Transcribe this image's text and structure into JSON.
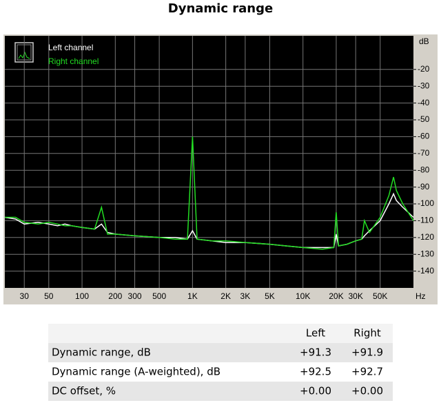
{
  "chart_data": {
    "type": "line",
    "title": "Dynamic range",
    "x_unit": "Hz",
    "y_unit": "dB",
    "x_scale": "log",
    "grid": true,
    "legend": "upper left",
    "background": "#000000",
    "x": [
      20,
      25,
      30,
      40,
      50,
      60,
      70,
      80,
      100,
      130,
      150,
      170,
      200,
      300,
      500,
      700,
      900,
      1000,
      1100,
      1500,
      2000,
      3000,
      5000,
      7000,
      10000,
      15000,
      19000,
      20000,
      21000,
      25000,
      30000,
      34000,
      36000,
      40000,
      50000,
      60000,
      66000,
      70000,
      80000,
      100000
    ],
    "series": [
      {
        "name": "Left channel",
        "color": "#ffffff",
        "values": [
          -108,
          -109,
          -112,
          -111,
          -112,
          -113,
          -112,
          -113,
          -114,
          -115,
          -112,
          -117,
          -118,
          -119,
          -120,
          -120,
          -121,
          -116,
          -121,
          -122,
          -123,
          -123,
          -124,
          -125,
          -126,
          -126,
          -126,
          -118,
          -125,
          -124,
          -122,
          -121,
          -119,
          -116,
          -110,
          -100,
          -94,
          -98,
          -102,
          -108
        ]
      },
      {
        "name": "Right channel",
        "color": "#22dd22",
        "values": [
          -108,
          -108,
          -111,
          -112,
          -111,
          -112,
          -113,
          -113,
          -114,
          -115,
          -102,
          -118,
          -118,
          -119,
          -120,
          -121,
          -121,
          -60,
          -121,
          -122,
          -122,
          -123,
          -124,
          -125,
          -126,
          -127,
          -126,
          -105,
          -125,
          -124,
          -122,
          -121,
          -110,
          -117,
          -108,
          -95,
          -84,
          -92,
          -100,
          -110
        ]
      }
    ],
    "xlim": [
      20,
      100000
    ],
    "ylim": [
      -150,
      0
    ],
    "xticks": [
      30,
      50,
      100,
      200,
      300,
      500,
      {
        "value": 1000,
        "label": "1K"
      },
      {
        "value": 2000,
        "label": "2K"
      },
      {
        "value": 3000,
        "label": "3K"
      },
      {
        "value": 5000,
        "label": "5K"
      },
      {
        "value": 10000,
        "label": "10K"
      },
      {
        "value": 20000,
        "label": "20K"
      },
      {
        "value": 30000,
        "label": "30K"
      },
      {
        "value": 50000,
        "label": "50K"
      }
    ],
    "yticks": [
      -20,
      -30,
      -40,
      -50,
      -60,
      -70,
      -80,
      -90,
      -100,
      -110,
      -120,
      -130,
      -140
    ]
  },
  "table": {
    "columns": [
      "Left",
      "Right"
    ],
    "rows": [
      {
        "label": "Dynamic range, dB",
        "values": [
          "+91.3",
          "+91.9"
        ]
      },
      {
        "label": "Dynamic range (A-weighted), dB",
        "values": [
          "+92.5",
          "+92.7"
        ]
      },
      {
        "label": "DC offset, %",
        "values": [
          "+0.00",
          "+0.00"
        ]
      }
    ]
  }
}
